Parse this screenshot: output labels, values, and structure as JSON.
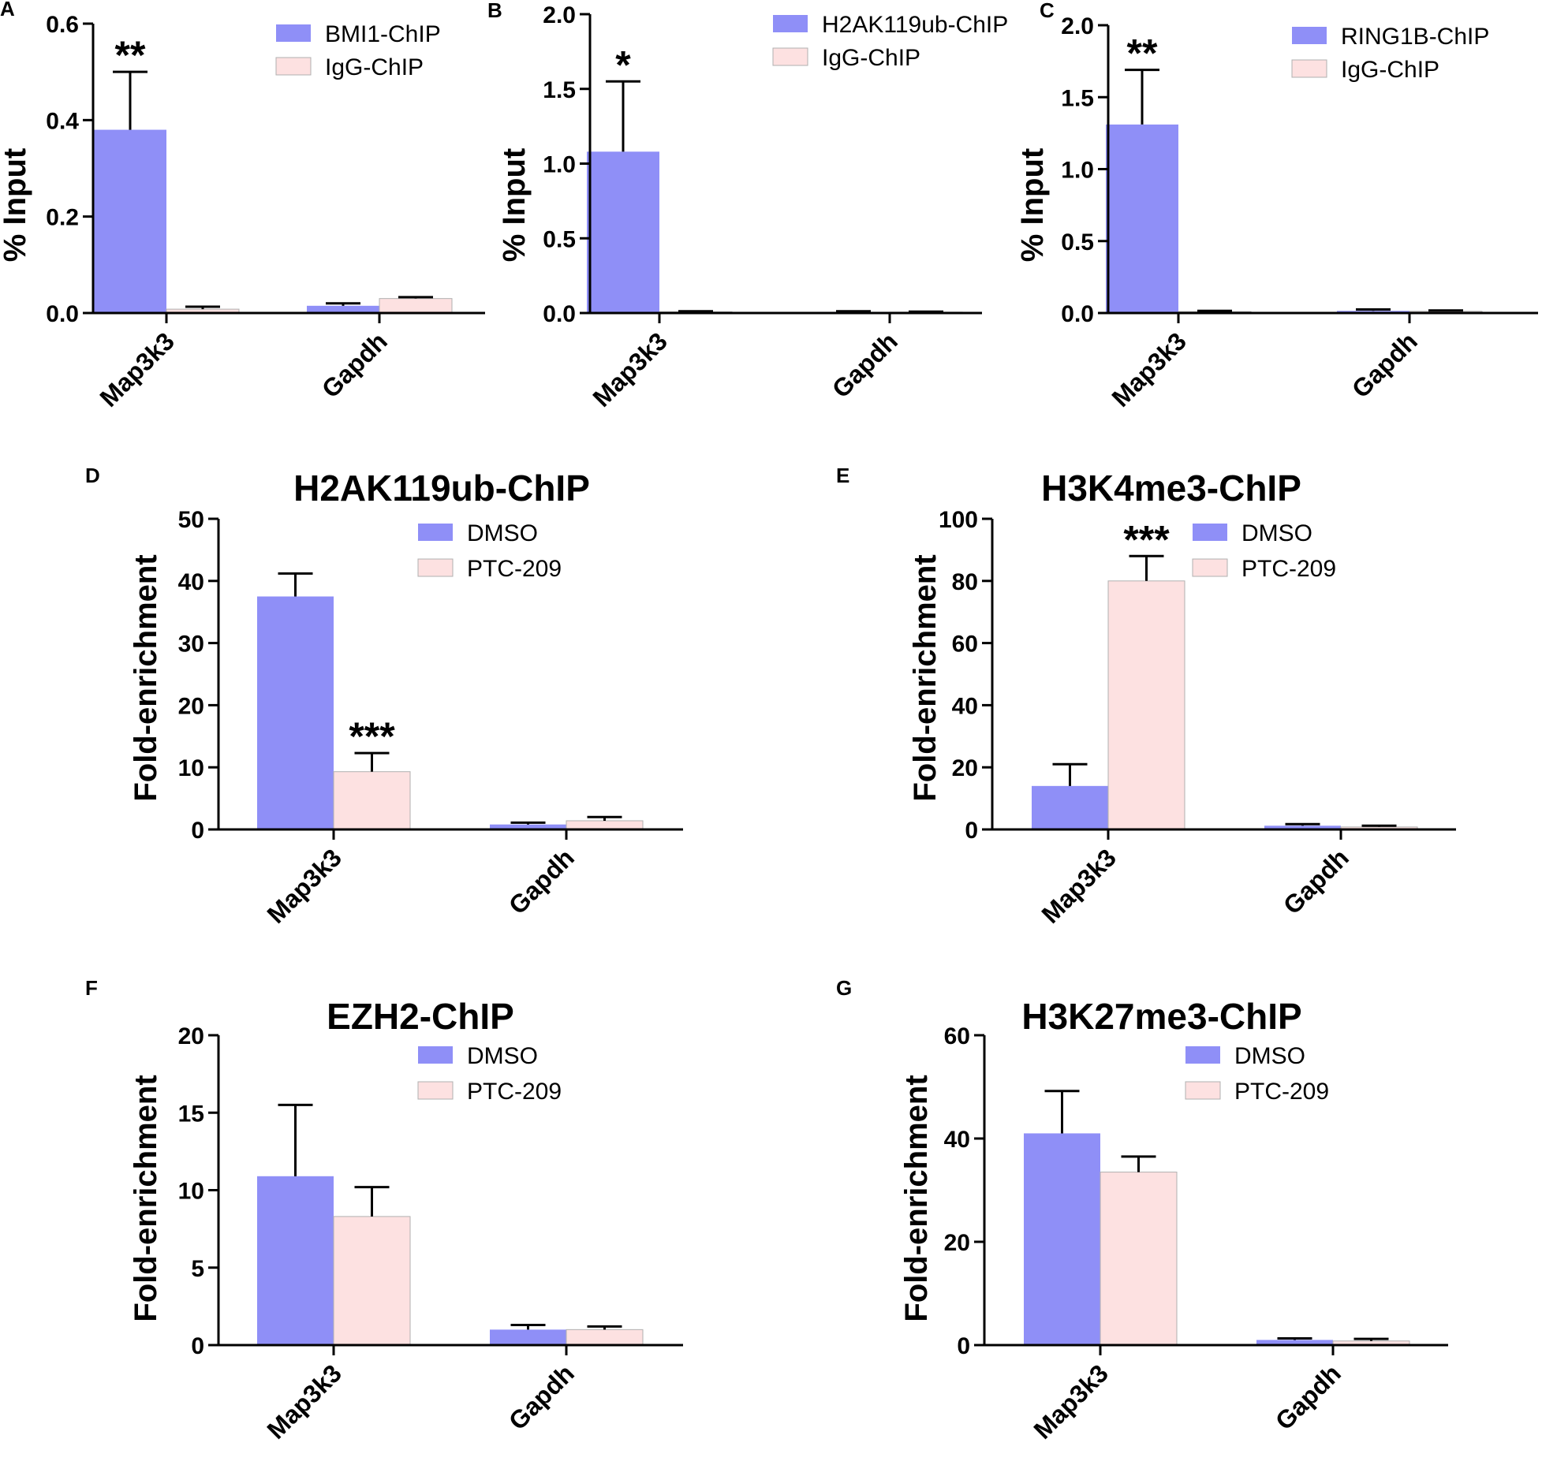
{
  "colors": {
    "series_a": "#8f8ff7",
    "series_b": "#fde1e1"
  },
  "chart_data": [
    {
      "panel": "A",
      "type": "bar",
      "title": "",
      "ylabel": "% Input",
      "ylim": [
        0,
        0.6
      ],
      "yticks": [
        "0.0",
        "0.2",
        "0.4",
        "0.6"
      ],
      "categories": [
        "Map3k3",
        "Gapdh"
      ],
      "series": [
        {
          "name": "BMI1-ChIP",
          "values": [
            0.38,
            0.015
          ],
          "errors": [
            0.12,
            0.005
          ]
        },
        {
          "name": "IgG-ChIP",
          "values": [
            0.008,
            0.03
          ],
          "errors": [
            0.005,
            0.003
          ]
        }
      ],
      "significance": [
        {
          "series": 0,
          "category": 0,
          "label": "**"
        }
      ]
    },
    {
      "panel": "B",
      "type": "bar",
      "title": "",
      "ylabel": "% Input",
      "ylim": [
        0,
        2.0
      ],
      "yticks": [
        "0.0",
        "0.5",
        "1.0",
        "1.5",
        "2.0"
      ],
      "categories": [
        "Map3k3",
        "Gapdh"
      ],
      "series": [
        {
          "name": "H2AK119ub-ChIP",
          "values": [
            1.08,
            0.008
          ],
          "errors": [
            0.47,
            0.004
          ]
        },
        {
          "name": "IgG-ChIP",
          "values": [
            0.008,
            0.006
          ],
          "errors": [
            0.004,
            0.003
          ]
        }
      ],
      "significance": [
        {
          "series": 0,
          "category": 0,
          "label": "*"
        }
      ]
    },
    {
      "panel": "C",
      "type": "bar",
      "title": "",
      "ylabel": "% Input",
      "ylim": [
        0,
        2.0
      ],
      "yticks": [
        "0.0",
        "0.5",
        "1.0",
        "1.5",
        "2.0"
      ],
      "categories": [
        "Map3k3",
        "Gapdh"
      ],
      "series": [
        {
          "name": "RING1B-ChIP",
          "values": [
            1.31,
            0.015
          ],
          "errors": [
            0.38,
            0.01
          ]
        },
        {
          "name": "IgG-ChIP",
          "values": [
            0.01,
            0.012
          ],
          "errors": [
            0.005,
            0.006
          ]
        }
      ],
      "significance": [
        {
          "series": 0,
          "category": 0,
          "label": "**"
        }
      ]
    },
    {
      "panel": "D",
      "type": "bar",
      "title": "H2AK119ub-ChIP",
      "ylabel": "Fold-enrichment",
      "ylim": [
        0,
        50
      ],
      "yticks": [
        "0",
        "10",
        "20",
        "30",
        "40",
        "50"
      ],
      "categories": [
        "Map3k3",
        "Gapdh"
      ],
      "series": [
        {
          "name": "DMSO",
          "values": [
            37.5,
            0.8
          ],
          "errors": [
            3.7,
            0.3
          ]
        },
        {
          "name": "PTC-209",
          "values": [
            9.3,
            1.4
          ],
          "errors": [
            3.0,
            0.6
          ]
        }
      ],
      "significance": [
        {
          "series": 1,
          "category": 0,
          "label": "***"
        }
      ]
    },
    {
      "panel": "E",
      "type": "bar",
      "title": "H3K4me3-ChIP",
      "ylabel": "Fold-enrichment",
      "ylim": [
        0,
        100
      ],
      "yticks": [
        "0",
        "20",
        "40",
        "60",
        "80",
        "100"
      ],
      "categories": [
        "Map3k3",
        "Gapdh"
      ],
      "series": [
        {
          "name": "DMSO",
          "values": [
            14,
            1.2
          ],
          "errors": [
            7,
            0.5
          ]
        },
        {
          "name": "PTC-209",
          "values": [
            80,
            0.8
          ],
          "errors": [
            8,
            0.4
          ]
        }
      ],
      "significance": [
        {
          "series": 1,
          "category": 0,
          "label": "***"
        }
      ]
    },
    {
      "panel": "F",
      "type": "bar",
      "title": "EZH2-ChIP",
      "ylabel": "Fold-enrichment",
      "ylim": [
        0,
        20
      ],
      "yticks": [
        "0",
        "5",
        "10",
        "15",
        "20"
      ],
      "categories": [
        "Map3k3",
        "Gapdh"
      ],
      "series": [
        {
          "name": "DMSO",
          "values": [
            10.9,
            1.0
          ],
          "errors": [
            4.6,
            0.3
          ]
        },
        {
          "name": "PTC-209",
          "values": [
            8.3,
            1.0
          ],
          "errors": [
            1.9,
            0.2
          ]
        }
      ],
      "significance": []
    },
    {
      "panel": "G",
      "type": "bar",
      "title": "H3K27me3-ChIP",
      "ylabel": "Fold-enrichment",
      "ylim": [
        0,
        60
      ],
      "yticks": [
        "0",
        "20",
        "40",
        "60"
      ],
      "categories": [
        "Map3k3",
        "Gapdh"
      ],
      "series": [
        {
          "name": "DMSO",
          "values": [
            41,
            1.0
          ],
          "errors": [
            8.2,
            0.3
          ]
        },
        {
          "name": "PTC-209",
          "values": [
            33.5,
            0.8
          ],
          "errors": [
            3,
            0.4
          ]
        }
      ],
      "significance": []
    }
  ]
}
